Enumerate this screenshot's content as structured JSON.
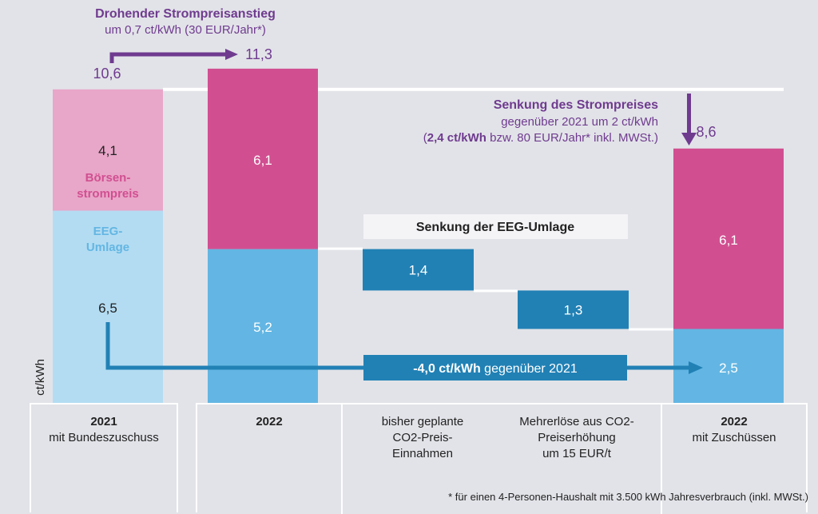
{
  "chart_data": {
    "type": "bar",
    "subtype": "stacked-waterfall",
    "unit_label": "ct/kWh",
    "ylim": [
      0,
      11.3
    ],
    "grid": false,
    "colors": {
      "boersen_2021": "#e8a6c8",
      "eeg_2021": "#b3dcf2",
      "boersen": "#d14f91",
      "eeg": "#63b6e3",
      "eeg_reduction": "#2181b5",
      "purple_annotation": "#6f3b8f",
      "reference_line": "#ffffff"
    },
    "categories": [
      {
        "id": "c2021",
        "title": "2021",
        "subtitle": "mit Bundeszuschuss"
      },
      {
        "id": "c2022",
        "title": "2022",
        "subtitle": ""
      },
      {
        "id": "cco2",
        "title": "",
        "subtitle": "bisher geplante\nCO2-Preis-\nEinnahmen"
      },
      {
        "id": "cmehr",
        "title": "",
        "subtitle": "Mehrerlöse aus CO2-\nPreiserhöhung\num 15 EUR/t"
      },
      {
        "id": "c2022z",
        "title": "2022",
        "subtitle": "mit Zuschüssen"
      }
    ],
    "series": [
      {
        "name": "EEG-Umlage",
        "values": [
          6.5,
          5.2,
          null,
          null,
          2.5
        ]
      },
      {
        "name": "Börsenstrompreis",
        "values": [
          4.1,
          6.1,
          null,
          null,
          6.1
        ]
      }
    ],
    "floating": [
      {
        "name": "Senkung der EEG-Umlage (CO2-Preis-Einnahmen)",
        "category": "cco2",
        "from": 3.8,
        "to": 5.2,
        "value": 1.4,
        "label": "1,4"
      },
      {
        "name": "Senkung der EEG-Umlage (Mehrerlöse)",
        "category": "cmehr",
        "from": 2.5,
        "to": 3.8,
        "value": 1.3,
        "label": "1,3"
      }
    ],
    "totals": [
      {
        "category": "c2021",
        "value": 10.6,
        "label": "10,6"
      },
      {
        "category": "c2022",
        "value": 11.3,
        "label": "11,3"
      },
      {
        "category": "c2022z",
        "value": 8.6,
        "label": "8,6"
      }
    ],
    "segment_labels": {
      "c2021_boersen": "4,1",
      "c2021_eeg": "6,5",
      "c2022_boersen": "6,1",
      "c2022_eeg": "5,2",
      "c2022z_boersen": "6,1",
      "c2022z_eeg": "2,5"
    },
    "series_labels": {
      "boersen": [
        "Börsen-",
        "strompreis"
      ],
      "eeg": [
        "EEG-",
        "Umlage"
      ]
    },
    "annotations": {
      "rise_title": "Drohender Strompreisanstieg",
      "rise_sub": "um 0,7 ct/kWh (30 EUR/Jahr*)",
      "drop_title": "Senkung des Strompreises",
      "drop_sub1": "gegenüber 2021 um 2 ct/kWh",
      "drop_sub2_open": "(",
      "drop_sub2_bold": "2,4 ct/kWh",
      "drop_sub2_rest": " bzw. 80 EUR/Jahr* inkl. MWSt.)",
      "eeg_box_title": "Senkung der EEG-Umlage",
      "eeg_delta_bold": "-4,0 ct/kWh",
      "eeg_delta_rest": " gegenüber 2021"
    },
    "footnote": "* für einen 4-Personen-Haushalt mit 3.500 kWh Jahresverbrauch (inkl. MWSt.)"
  }
}
